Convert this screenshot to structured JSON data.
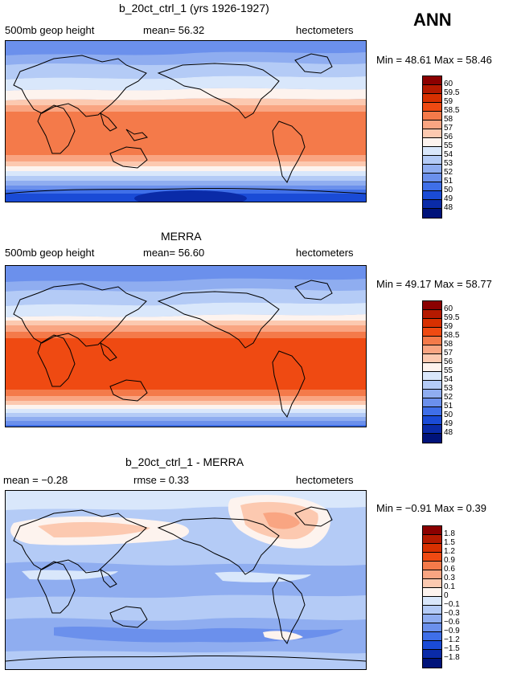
{
  "header": {
    "season": "ANN"
  },
  "panels": [
    {
      "title": "b_20ct_ctrl_1 (yrs 1926-1927)",
      "left_label": "500mb geop height",
      "center_label": "mean=  56.32",
      "right_label": "hectometers",
      "minmax": "Min =  48.61  Max =  58.46",
      "colorbar": {
        "labels": [
          "60",
          "59.5",
          "59",
          "58.5",
          "58",
          "57",
          "56",
          "55",
          "54",
          "53",
          "52",
          "51",
          "50",
          "49",
          "48"
        ],
        "colors": [
          "#8b0000",
          "#b51a00",
          "#d83000",
          "#ef4a12",
          "#f47a4a",
          "#f9a582",
          "#fcc9b0",
          "#fdf3ee",
          "#d9e7fb",
          "#b4cbf6",
          "#8fadf0",
          "#6b90ec",
          "#3f6fe8",
          "#1a4bd6",
          "#0a2ba8",
          "#00137a"
        ]
      }
    },
    {
      "title": "MERRA",
      "left_label": "500mb geop height",
      "center_label": "mean=  56.60",
      "right_label": "hectometers",
      "minmax": "Min =  49.17  Max =  58.77",
      "colorbar": {
        "labels": [
          "60",
          "59.5",
          "59",
          "58.5",
          "58",
          "57",
          "56",
          "55",
          "54",
          "53",
          "52",
          "51",
          "50",
          "49",
          "48"
        ],
        "colors": [
          "#8b0000",
          "#b51a00",
          "#d83000",
          "#ef4a12",
          "#f47a4a",
          "#f9a582",
          "#fcc9b0",
          "#fdf3ee",
          "#d9e7fb",
          "#b4cbf6",
          "#8fadf0",
          "#6b90ec",
          "#3f6fe8",
          "#1a4bd6",
          "#0a2ba8",
          "#00137a"
        ]
      }
    },
    {
      "title": "b_20ct_ctrl_1 - MERRA",
      "left_label": "mean =  −0.28",
      "center_label": "rmse =  0.33",
      "right_label": "hectometers",
      "minmax": "Min =  −0.91  Max =  0.39",
      "colorbar": {
        "labels": [
          "1.8",
          "1.5",
          "1.2",
          "0.9",
          "0.6",
          "0.3",
          "0.1",
          "0",
          "−0.1",
          "−0.3",
          "−0.6",
          "−0.9",
          "−1.2",
          "−1.5",
          "−1.8"
        ],
        "colors": [
          "#8b0000",
          "#b51a00",
          "#d83000",
          "#ef4a12",
          "#f47a4a",
          "#f9a582",
          "#fcc9b0",
          "#fdf3ee",
          "#d9e7fb",
          "#b4cbf6",
          "#8fadf0",
          "#6b90ec",
          "#3f6fe8",
          "#1a4bd6",
          "#0a2ba8",
          "#00137a"
        ]
      }
    }
  ]
}
